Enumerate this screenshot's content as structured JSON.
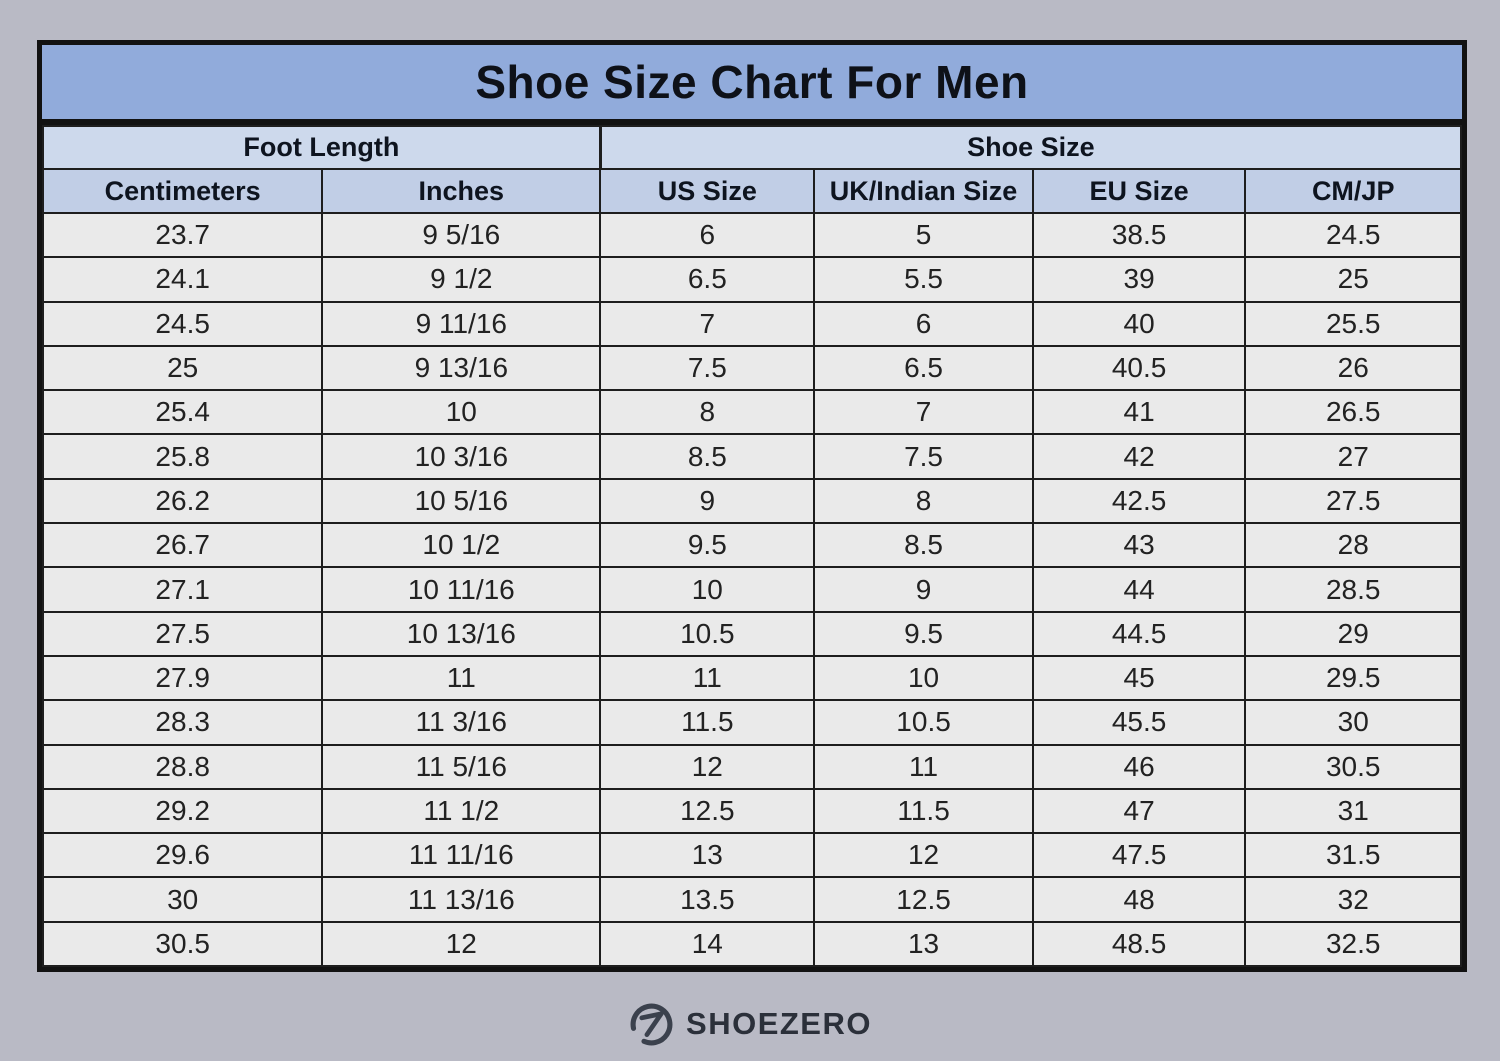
{
  "chart_data": {
    "type": "table",
    "title": "Shoe Size Chart For Men",
    "group_headers": [
      {
        "label": "Foot Length",
        "colspan": 2
      },
      {
        "label": "Shoe Size",
        "colspan": 4
      }
    ],
    "columns": [
      "Centimeters",
      "Inches",
      "US Size",
      "UK/Indian Size",
      "EU Size",
      "CM/JP"
    ],
    "rows": [
      [
        "23.7",
        "9 5/16",
        "6",
        "5",
        "38.5",
        "24.5"
      ],
      [
        "24.1",
        "9 1/2",
        "6.5",
        "5.5",
        "39",
        "25"
      ],
      [
        "24.5",
        "9 11/16",
        "7",
        "6",
        "40",
        "25.5"
      ],
      [
        "25",
        "9 13/16",
        "7.5",
        "6.5",
        "40.5",
        "26"
      ],
      [
        "25.4",
        "10",
        "8",
        "7",
        "41",
        "26.5"
      ],
      [
        "25.8",
        "10 3/16",
        "8.5",
        "7.5",
        "42",
        "27"
      ],
      [
        "26.2",
        "10 5/16",
        "9",
        "8",
        "42.5",
        "27.5"
      ],
      [
        "26.7",
        "10 1/2",
        "9.5",
        "8.5",
        "43",
        "28"
      ],
      [
        "27.1",
        "10 11/16",
        "10",
        "9",
        "44",
        "28.5"
      ],
      [
        "27.5",
        "10 13/16",
        "10.5",
        "9.5",
        "44.5",
        "29"
      ],
      [
        "27.9",
        "11",
        "11",
        "10",
        "45",
        "29.5"
      ],
      [
        "28.3",
        "11 3/16",
        "11.5",
        "10.5",
        "45.5",
        "30"
      ],
      [
        "28.8",
        "11 5/16",
        "12",
        "11",
        "46",
        "30.5"
      ],
      [
        "29.2",
        "11 1/2",
        "12.5",
        "11.5",
        "47",
        "31"
      ],
      [
        "29.6",
        "11 11/16",
        "13",
        "12",
        "47.5",
        "31.5"
      ],
      [
        "30",
        "11 13/16",
        "13.5",
        "12.5",
        "48",
        "32"
      ],
      [
        "30.5",
        "12",
        "14",
        "13",
        "48.5",
        "32.5"
      ]
    ],
    "layout_hints": {
      "grid": "on",
      "column_width_percents": [
        19.7,
        19.6,
        15.1,
        15.4,
        15.0,
        15.2
      ]
    }
  },
  "footer": {
    "brand": "SHOEZERO",
    "logo_icon": "shoezero-circle-z-icon"
  },
  "colors": {
    "page_bg": "#b9bac5",
    "title_bg": "#91abdb",
    "group_header_bg": "#cdd9ec",
    "sub_header_bg": "#c1cee6",
    "row_bg": "#eaeaea",
    "border": "#121212",
    "header_text": "#0e141f",
    "data_text": "#222222",
    "logo_color": "#3b414d"
  }
}
